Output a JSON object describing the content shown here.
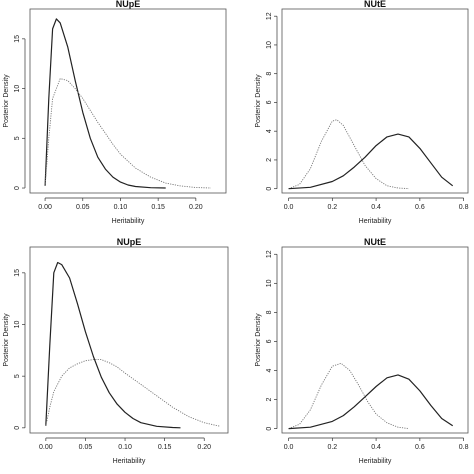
{
  "chart_data": [
    {
      "type": "line",
      "title": "NUpE",
      "xlabel": "Heritability",
      "ylabel": "Posterior Density",
      "xlim": [
        -0.02,
        0.24
      ],
      "ylim": [
        -0.5,
        18
      ],
      "xticks": [
        0.0,
        0.05,
        0.1,
        0.15,
        0.2
      ],
      "xtick_labels": [
        "0.00",
        "0.05",
        "0.10",
        "0.15",
        "0.20"
      ],
      "yticks": [
        0,
        5,
        10,
        15
      ],
      "ytick_labels": [
        "0",
        "5",
        "10",
        "15"
      ],
      "grid": false,
      "series": [
        {
          "style": "solid",
          "x": [
            0.0,
            0.005,
            0.01,
            0.015,
            0.02,
            0.03,
            0.04,
            0.05,
            0.06,
            0.07,
            0.08,
            0.09,
            0.1,
            0.11,
            0.12,
            0.14,
            0.16
          ],
          "y": [
            0.2,
            9.0,
            16.0,
            17.0,
            16.6,
            14.2,
            10.8,
            7.6,
            5.0,
            3.1,
            1.9,
            1.1,
            0.6,
            0.3,
            0.15,
            0.03,
            0.0
          ]
        },
        {
          "style": "dotted",
          "x": [
            0.0,
            0.005,
            0.01,
            0.02,
            0.03,
            0.04,
            0.05,
            0.06,
            0.07,
            0.08,
            0.09,
            0.1,
            0.12,
            0.14,
            0.16,
            0.18,
            0.2,
            0.22
          ],
          "y": [
            0.2,
            5.0,
            9.0,
            11.0,
            10.8,
            10.0,
            9.0,
            7.8,
            6.6,
            5.5,
            4.4,
            3.4,
            2.0,
            1.1,
            0.5,
            0.2,
            0.05,
            0.0
          ]
        }
      ]
    },
    {
      "type": "line",
      "title": "NUtE",
      "xlabel": "Heritability",
      "ylabel": "Posterior Density",
      "xlim": [
        -0.03,
        0.82
      ],
      "ylim": [
        -0.3,
        12.5
      ],
      "xticks": [
        0.0,
        0.2,
        0.4,
        0.6,
        0.8
      ],
      "xtick_labels": [
        "0.0",
        "0.2",
        "0.4",
        "0.6",
        "0.8"
      ],
      "yticks": [
        0,
        2,
        4,
        6,
        8,
        10,
        12
      ],
      "ytick_labels": [
        "0",
        "2",
        "4",
        "6",
        "8",
        "10",
        "12"
      ],
      "grid": false,
      "series": [
        {
          "style": "dotted",
          "x": [
            0.0,
            0.05,
            0.1,
            0.15,
            0.2,
            0.22,
            0.25,
            0.3,
            0.35,
            0.4,
            0.45,
            0.5,
            0.55
          ],
          "y": [
            0.0,
            0.3,
            1.4,
            3.3,
            4.7,
            4.8,
            4.4,
            3.0,
            1.6,
            0.7,
            0.2,
            0.05,
            0.0
          ]
        },
        {
          "style": "solid",
          "x": [
            0.0,
            0.1,
            0.2,
            0.25,
            0.3,
            0.35,
            0.4,
            0.45,
            0.5,
            0.55,
            0.6,
            0.65,
            0.7,
            0.75
          ],
          "y": [
            0.0,
            0.1,
            0.5,
            0.9,
            1.5,
            2.2,
            3.0,
            3.6,
            3.8,
            3.6,
            2.8,
            1.8,
            0.8,
            0.2
          ]
        }
      ]
    },
    {
      "type": "line",
      "title": "NUpE",
      "xlabel": "Heritability",
      "ylabel": "Posterior Density",
      "xlim": [
        -0.02,
        0.23
      ],
      "ylim": [
        -0.5,
        17.5
      ],
      "xticks": [
        0.0,
        0.05,
        0.1,
        0.15,
        0.2
      ],
      "xtick_labels": [
        "0.00",
        "0.05",
        "0.10",
        "0.15",
        "0.20"
      ],
      "yticks": [
        0,
        5,
        10,
        15
      ],
      "ytick_labels": [
        "0",
        "5",
        "10",
        "15"
      ],
      "grid": false,
      "series": [
        {
          "style": "solid",
          "x": [
            0.0,
            0.005,
            0.01,
            0.015,
            0.02,
            0.03,
            0.04,
            0.05,
            0.06,
            0.07,
            0.08,
            0.09,
            0.1,
            0.11,
            0.12,
            0.14,
            0.16,
            0.17
          ],
          "y": [
            0.2,
            8.0,
            15.0,
            16.0,
            15.8,
            14.5,
            12.0,
            9.3,
            6.9,
            4.9,
            3.4,
            2.3,
            1.5,
            0.9,
            0.5,
            0.15,
            0.03,
            0.0
          ]
        },
        {
          "style": "dotted",
          "x": [
            0.0,
            0.005,
            0.01,
            0.02,
            0.03,
            0.04,
            0.05,
            0.06,
            0.07,
            0.08,
            0.09,
            0.1,
            0.12,
            0.14,
            0.16,
            0.18,
            0.2,
            0.22
          ],
          "y": [
            0.2,
            2.0,
            3.5,
            5.0,
            5.8,
            6.2,
            6.5,
            6.6,
            6.6,
            6.3,
            5.9,
            5.3,
            4.2,
            3.1,
            2.0,
            1.1,
            0.5,
            0.15
          ]
        }
      ]
    },
    {
      "type": "line",
      "title": "NUtE",
      "xlabel": "Heritability",
      "ylabel": "Posterior Density",
      "xlim": [
        -0.03,
        0.82
      ],
      "ylim": [
        -0.3,
        12.5
      ],
      "xticks": [
        0.0,
        0.2,
        0.4,
        0.6,
        0.8
      ],
      "xtick_labels": [
        "0.0",
        "0.2",
        "0.4",
        "0.6",
        "0.8"
      ],
      "yticks": [
        0,
        2,
        4,
        6,
        8,
        10,
        12
      ],
      "ytick_labels": [
        "0",
        "2",
        "4",
        "6",
        "8",
        "10",
        "12"
      ],
      "grid": false,
      "series": [
        {
          "style": "dotted",
          "x": [
            0.0,
            0.05,
            0.1,
            0.15,
            0.2,
            0.24,
            0.28,
            0.32,
            0.36,
            0.4,
            0.45,
            0.5,
            0.55
          ],
          "y": [
            0.0,
            0.3,
            1.3,
            3.0,
            4.3,
            4.5,
            4.0,
            3.0,
            1.9,
            1.0,
            0.4,
            0.1,
            0.0
          ]
        },
        {
          "style": "solid",
          "x": [
            0.0,
            0.1,
            0.2,
            0.25,
            0.3,
            0.35,
            0.4,
            0.45,
            0.5,
            0.55,
            0.6,
            0.65,
            0.7,
            0.75
          ],
          "y": [
            0.0,
            0.1,
            0.5,
            0.9,
            1.5,
            2.2,
            2.9,
            3.5,
            3.7,
            3.4,
            2.6,
            1.6,
            0.7,
            0.2
          ]
        }
      ]
    }
  ]
}
